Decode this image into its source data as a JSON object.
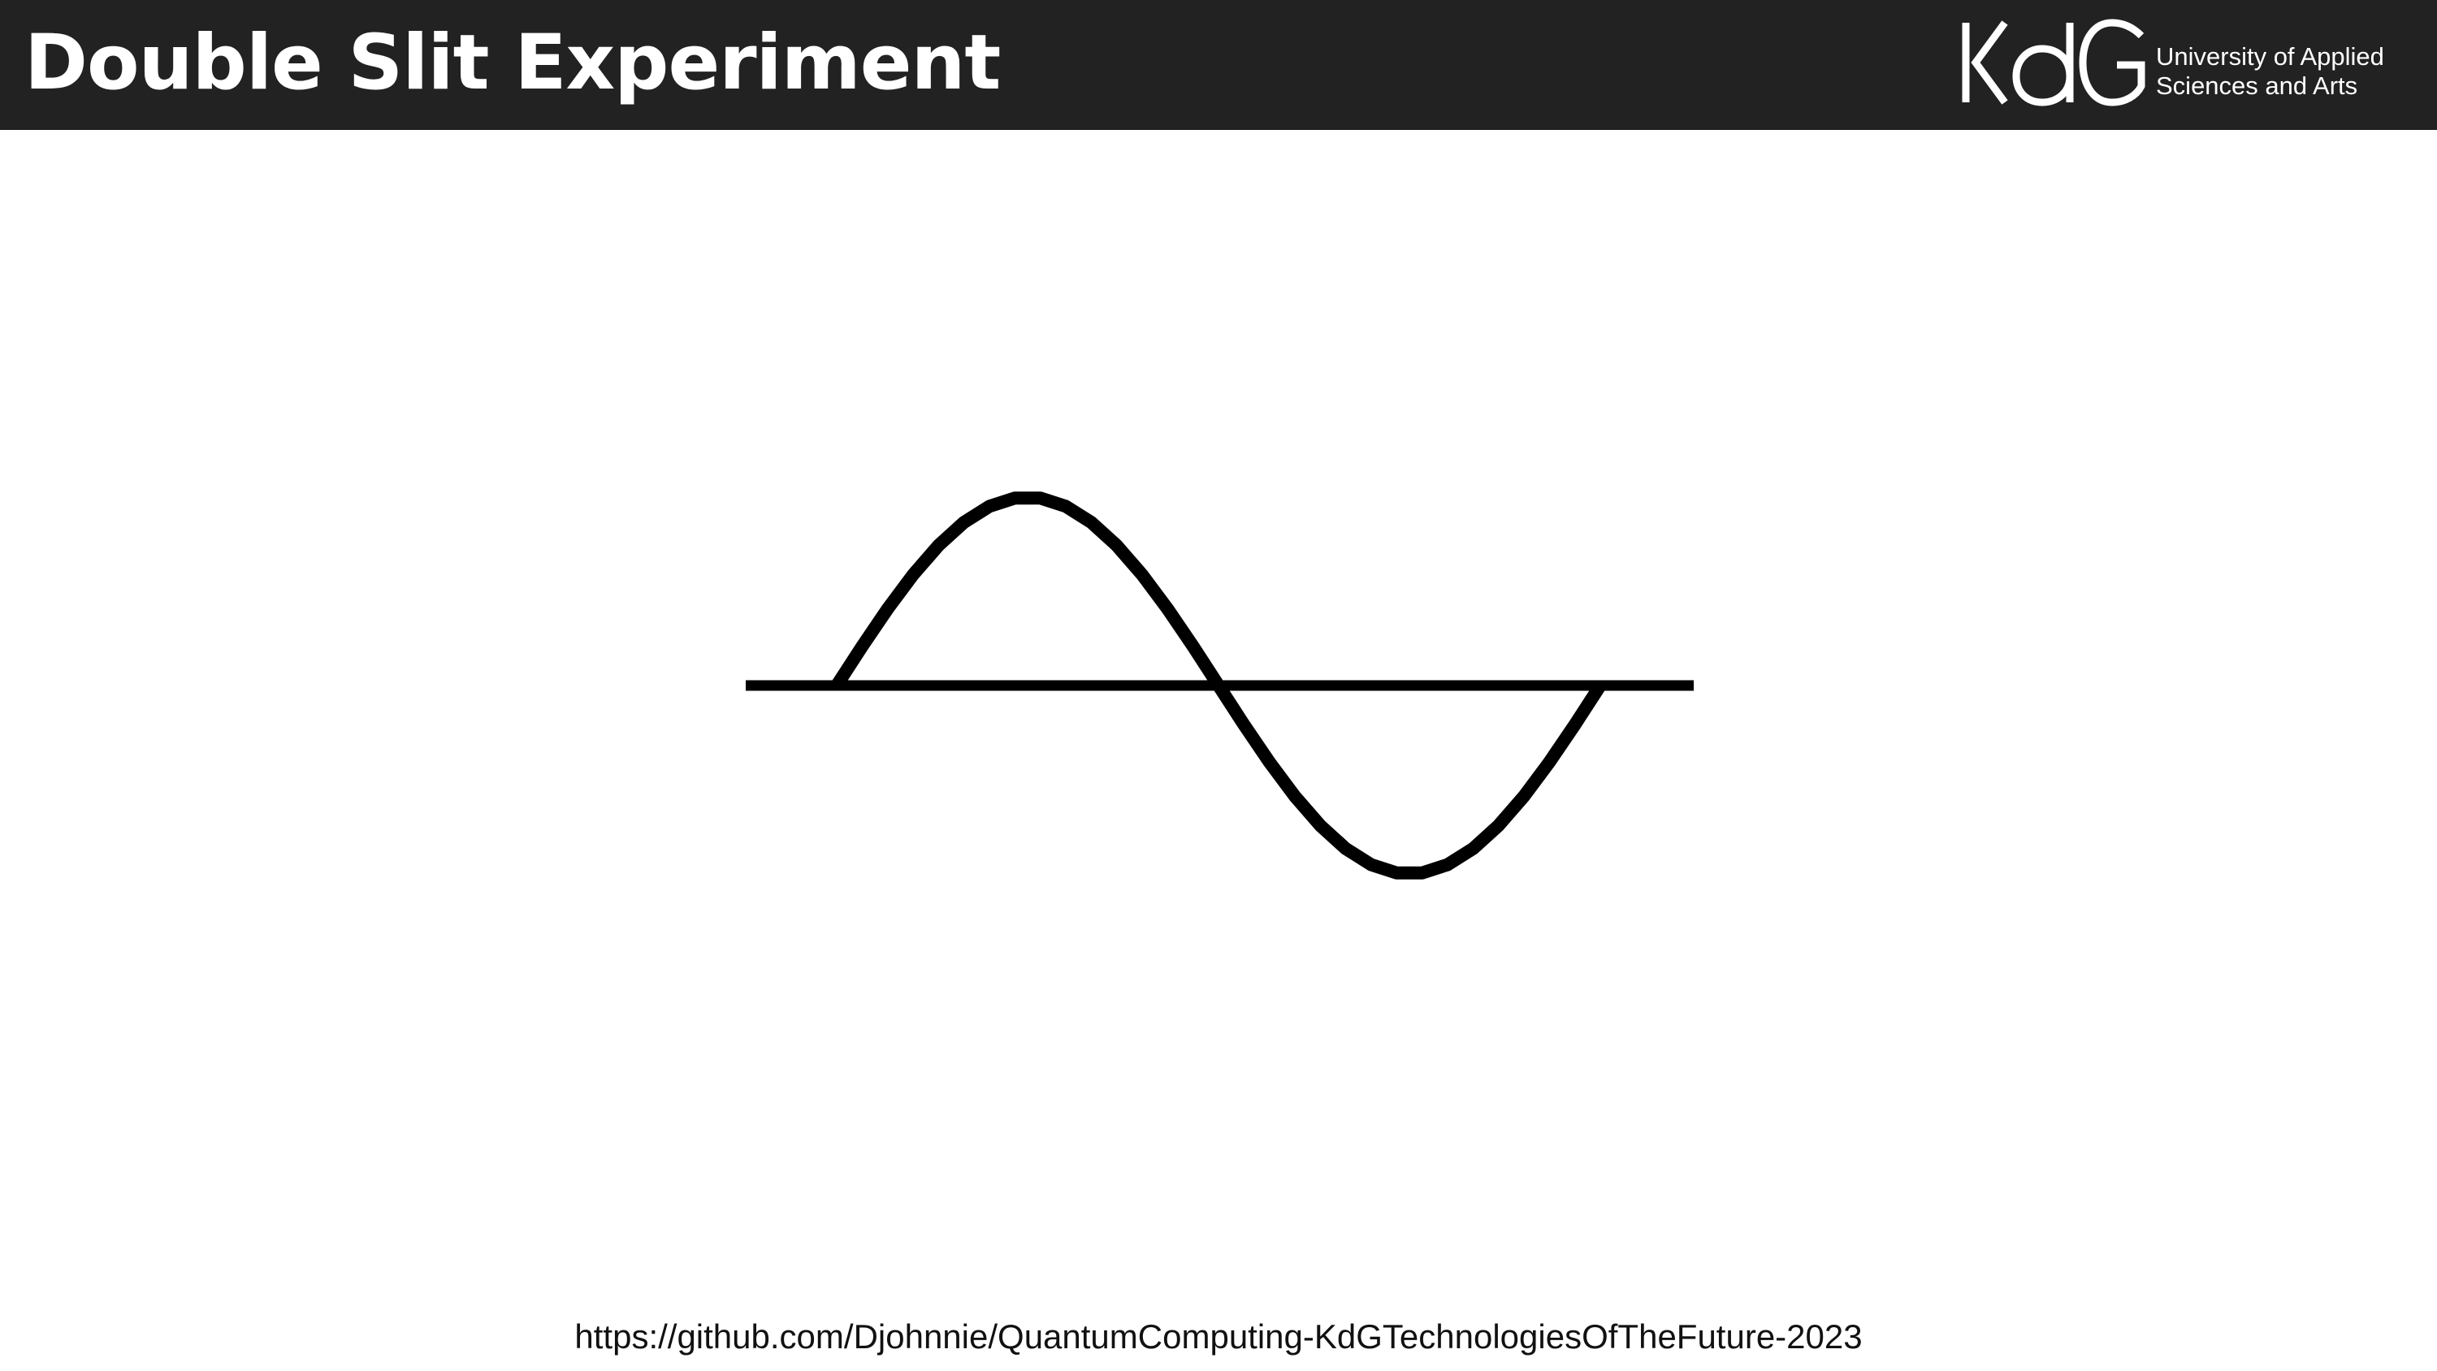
{
  "slide": {
    "title": "Double Slit Experiment",
    "source_url": "https://github.com/Djohnnie/QuantumComputing-KdGTechnologiesOfTheFuture-2023"
  },
  "logo": {
    "wordmark": "KdG",
    "line1": "University of Applied",
    "line2": "Sciences and Arts"
  },
  "figure": {
    "icon": "sine-wave-icon",
    "stroke_color": "#000000"
  },
  "colors": {
    "header_background": "#222222",
    "header_text": "#ffffff",
    "page_background": "#ffffff"
  }
}
